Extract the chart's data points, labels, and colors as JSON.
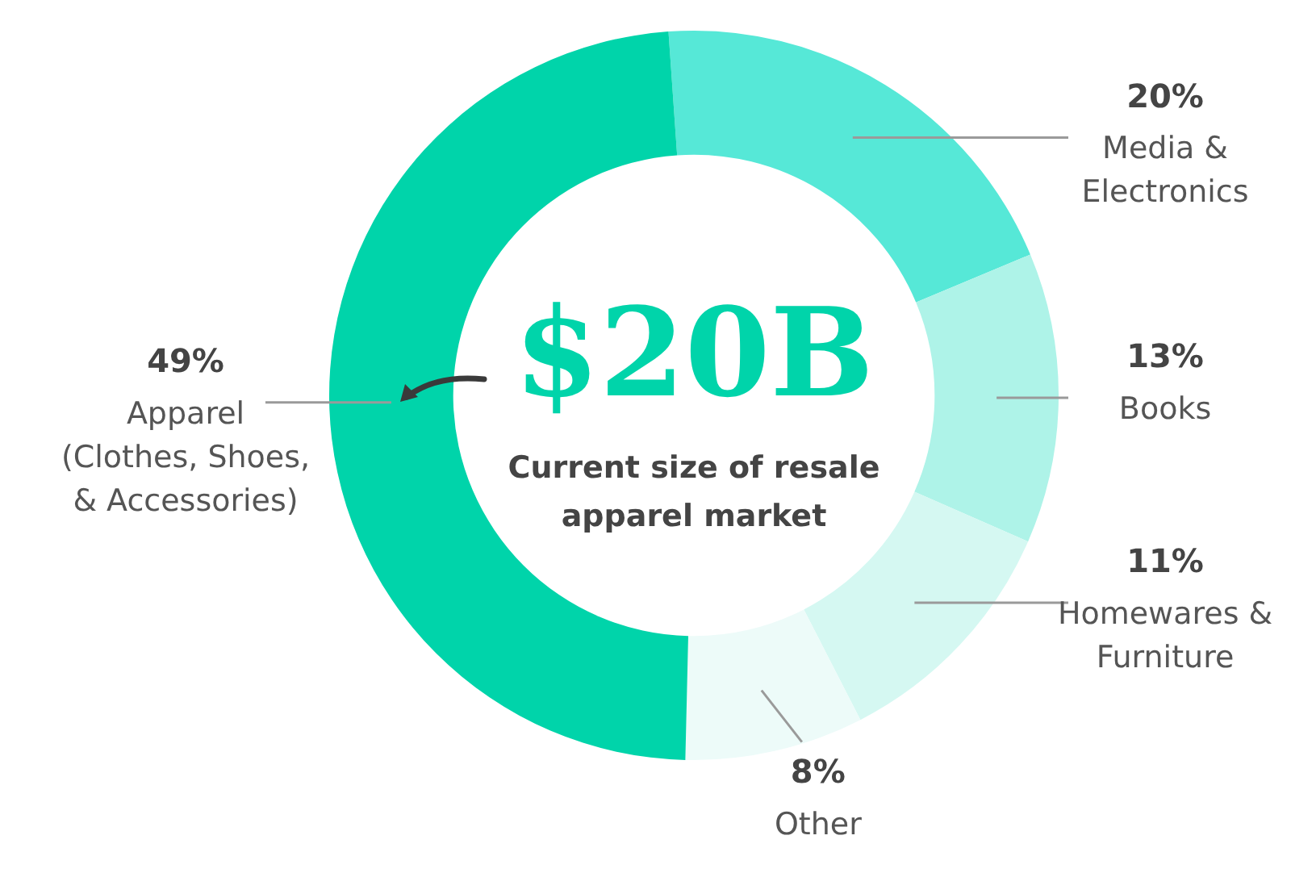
{
  "chart_data": {
    "type": "donut",
    "categories": [
      "Media & Electronics",
      "Books",
      "Homewares & Furniture",
      "Other",
      "Apparel (Clothes, Shoes, & Accessories)"
    ],
    "values": [
      20,
      13,
      11,
      8,
      49
    ],
    "colors": [
      "#56e8d7",
      "#aef3e8",
      "#d5f8f2",
      "#edfbf9",
      "#00d4aa"
    ],
    "value_labels": [
      "20%",
      "13%",
      "11%",
      "8%",
      "49%"
    ],
    "annotations": [
      "$20B",
      "Current size of resale apparel market"
    ],
    "legend": false
  }
}
